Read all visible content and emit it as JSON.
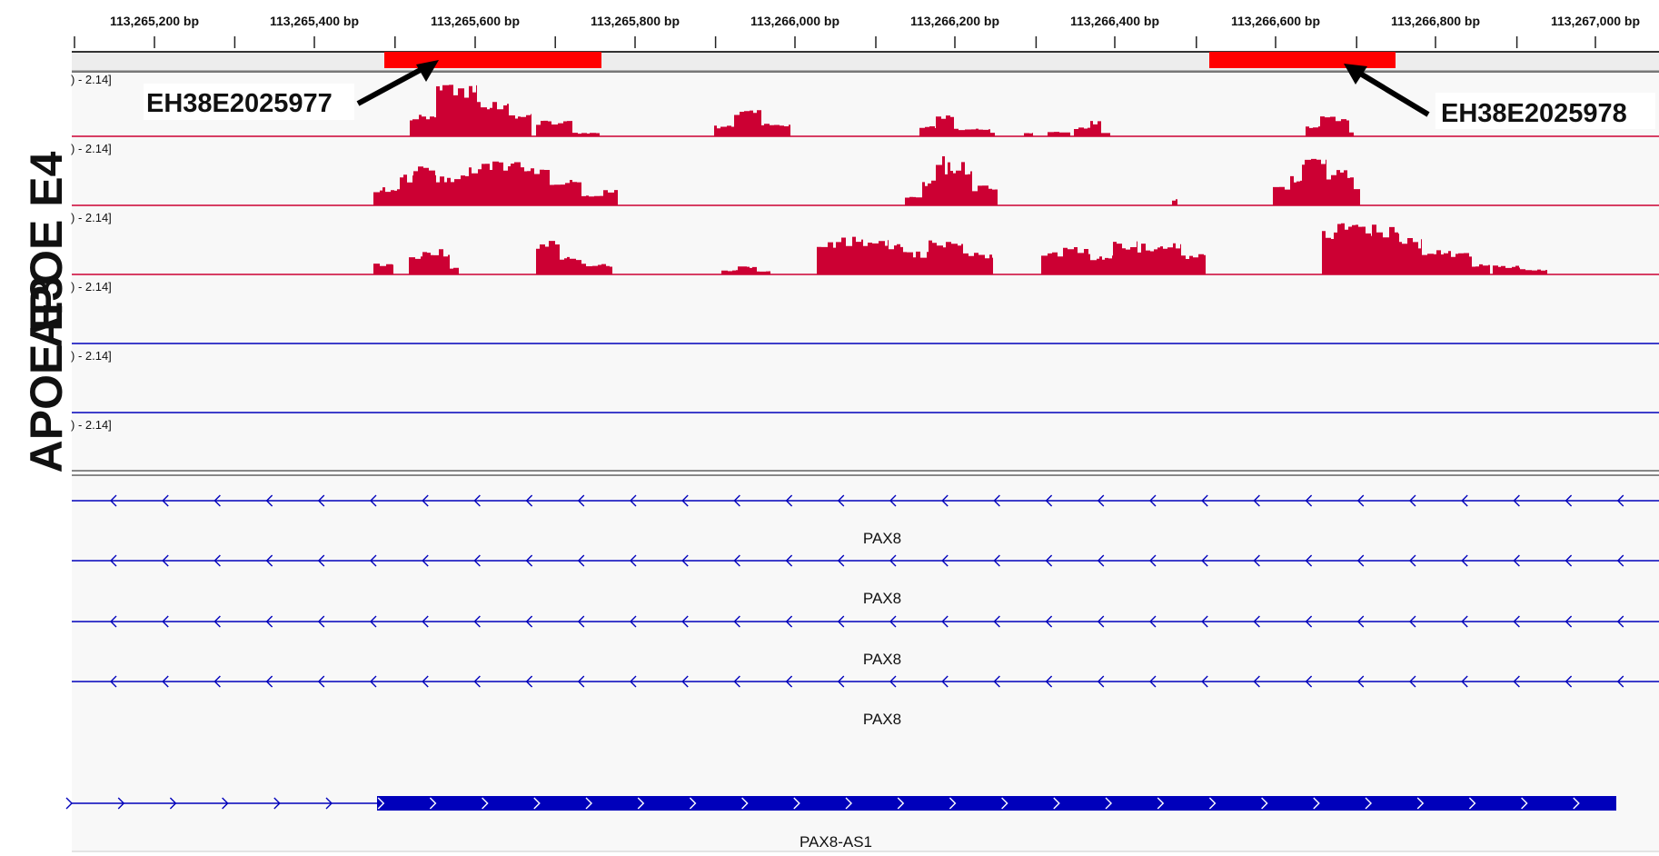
{
  "ruler": {
    "ticks": [
      "113,265,200 bp",
      "113,265,400 bp",
      "113,265,600 bp",
      "113,265,800 bp",
      "113,266,000 bp",
      "113,266,200 bp",
      "113,266,400 bp",
      "113,266,600 bp",
      "113,266,800 bp",
      "113,267,000 bp"
    ]
  },
  "colors": {
    "signal": "#cc0033",
    "region": "#ff0000",
    "e4_baseline": "#cc0033",
    "e3_baseline": "#0000bb",
    "gene": "#0000bb",
    "panel_bg": "#f8f8f8",
    "separator": "#888888"
  },
  "annotations": {
    "region_left": "EH38E2025977",
    "region_right": "EH38E2025978"
  },
  "group_labels": {
    "e4": "APOE E4",
    "e3": "APOE E3"
  },
  "tracks": [
    {
      "range": ") - 2.14]"
    },
    {
      "range": ") - 2.14]"
    },
    {
      "range": ") - 2.14]"
    },
    {
      "range": ") - 2.14]"
    },
    {
      "range": ") - 2.14]"
    },
    {
      "range": ") - 2.14]"
    }
  ],
  "genes": [
    {
      "name": "PAX8",
      "strand": "minus"
    },
    {
      "name": "PAX8",
      "strand": "minus"
    },
    {
      "name": "PAX8",
      "strand": "minus"
    },
    {
      "name": "PAX8",
      "strand": "minus"
    },
    {
      "name": "PAX8-AS1",
      "strand": "plus"
    }
  ]
}
